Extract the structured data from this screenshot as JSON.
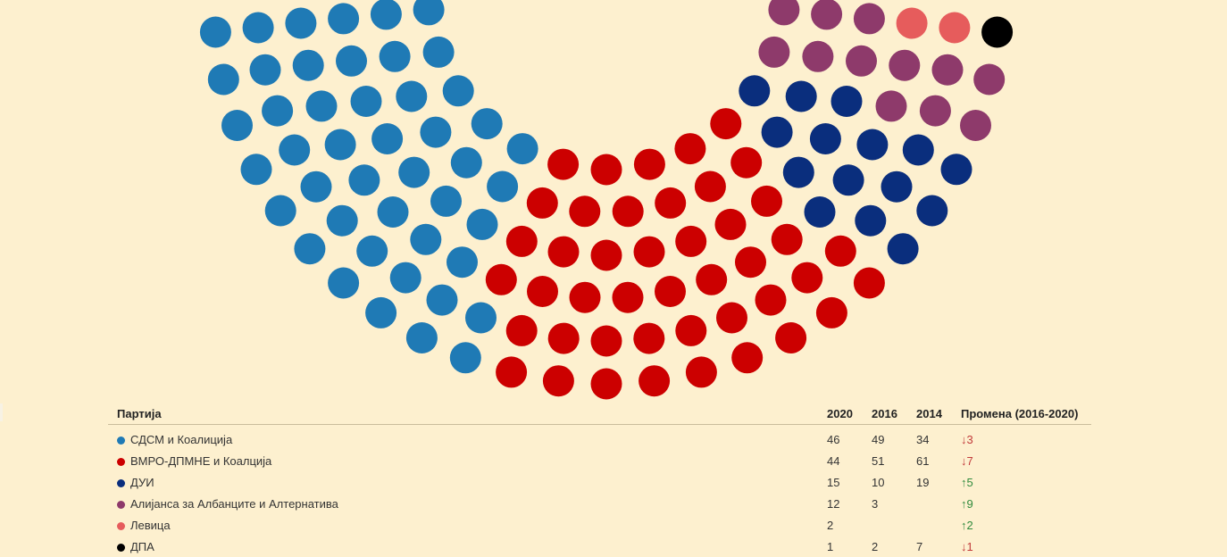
{
  "colors": {
    "background": "#fdf0cf",
    "sdsm": "#1f7ab5",
    "vmro": "#cc0000",
    "dui": "#0a2e7d",
    "alliance": "#8e3a6b",
    "levica": "#e65c5c",
    "dpa": "#000000"
  },
  "chart_data": {
    "type": "parliament",
    "total_seats": 120,
    "series": [
      {
        "name": "СДСМ и Коалиција",
        "seats": 46,
        "color": "#1f7ab5"
      },
      {
        "name": "ВМРО-ДПМНЕ и Коалција",
        "seats": 44,
        "color": "#cc0000"
      },
      {
        "name": "ДУИ",
        "seats": 15,
        "color": "#0a2e7d"
      },
      {
        "name": "Алијанса за Албанците и Алтернатива",
        "seats": 12,
        "color": "#8e3a6b"
      },
      {
        "name": "Левица",
        "seats": 2,
        "color": "#e65c5c"
      },
      {
        "name": "ДПА",
        "seats": 1,
        "color": "#000000"
      }
    ]
  },
  "table": {
    "headers": {
      "party": "Партија",
      "y2020": "2020",
      "y2016": "2016",
      "y2014": "2014",
      "change": "Промена (2016-2020)"
    },
    "rows": [
      {
        "party": "СДСМ и Коалиција",
        "color": "#1f7ab5",
        "y2020": "46",
        "y2016": "49",
        "y2014": "34",
        "change": "↓3",
        "dir": "down"
      },
      {
        "party": "ВМРО-ДПМНЕ и Коалција",
        "color": "#cc0000",
        "y2020": "44",
        "y2016": "51",
        "y2014": "61",
        "change": "↓7",
        "dir": "down"
      },
      {
        "party": "ДУИ",
        "color": "#0a2e7d",
        "y2020": "15",
        "y2016": "10",
        "y2014": "19",
        "change": "↑5",
        "dir": "up"
      },
      {
        "party": "Алијанса за Албанците и Алтернатива",
        "color": "#8e3a6b",
        "y2020": "12",
        "y2016": "3",
        "y2014": "",
        "change": "↑9",
        "dir": "up"
      },
      {
        "party": "Левица",
        "color": "#e65c5c",
        "y2020": "2",
        "y2016": "",
        "y2014": "",
        "change": "↑2",
        "dir": "up"
      },
      {
        "party": "ДПА",
        "color": "#000000",
        "y2020": "1",
        "y2016": "2",
        "y2014": "7",
        "change": "↓1",
        "dir": "down"
      }
    ]
  }
}
